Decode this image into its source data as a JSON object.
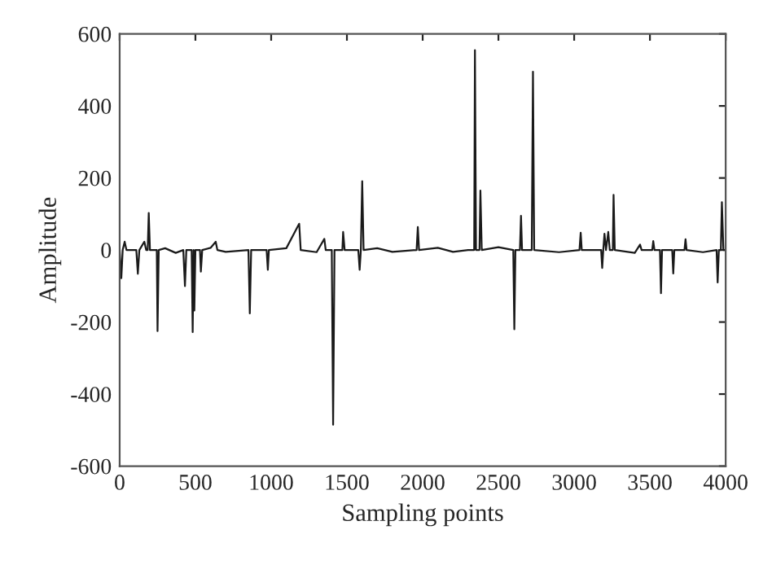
{
  "chart_data": {
    "type": "line",
    "xlabel": "Sampling points",
    "ylabel": "Amplitude",
    "xlim": [
      0,
      4000
    ],
    "xticks": [
      0,
      500,
      1000,
      1500,
      2000,
      2500,
      3000,
      3500,
      4000
    ],
    "ylim": [
      -600,
      600
    ],
    "yticks": [
      -600,
      -400,
      -200,
      0,
      200,
      400,
      600
    ],
    "grid": false,
    "marker": "none",
    "line_style": "solid",
    "series": [
      {
        "color": "#1a1a1a",
        "x": [
          0,
          11,
          20,
          33,
          45,
          110,
          120,
          130,
          163,
          175,
          185,
          192,
          200,
          245,
          250,
          258,
          300,
          370,
          420,
          431,
          440,
          475,
          482,
          488,
          493,
          500,
          530,
          536,
          545,
          600,
          634,
          645,
          700,
          850,
          859,
          868,
          970,
          978,
          985,
          1100,
          1185,
          1195,
          1300,
          1351,
          1360,
          1400,
          1409,
          1418,
          1470,
          1475,
          1485,
          1575,
          1584,
          1592,
          1601,
          1610,
          1700,
          1800,
          1960,
          1968,
          1976,
          2100,
          2200,
          2300,
          2340,
          2345,
          2352,
          2375,
          2381,
          2390,
          2500,
          2598,
          2605,
          2612,
          2642,
          2649,
          2656,
          2720,
          2728,
          2736,
          2900,
          3035,
          3043,
          3050,
          3178,
          3185,
          3192,
          3200,
          3210,
          3225,
          3235,
          3255,
          3260,
          3268,
          3400,
          3435,
          3445,
          3515,
          3522,
          3530,
          3566,
          3573,
          3580,
          3647,
          3654,
          3661,
          3728,
          3735,
          3742,
          3850,
          3940,
          3947,
          3955,
          3968,
          3975,
          3985,
          4000
        ],
        "values": [
          0,
          -78,
          0,
          23,
          0,
          0,
          -66,
          0,
          23,
          0,
          0,
          103,
          0,
          0,
          -225,
          0,
          5,
          -8,
          0,
          -100,
          0,
          0,
          -228,
          0,
          -168,
          0,
          0,
          -60,
          0,
          6,
          23,
          0,
          -5,
          0,
          -176,
          0,
          0,
          -55,
          0,
          5,
          73,
          0,
          -6,
          31,
          0,
          0,
          -485,
          0,
          0,
          50,
          0,
          0,
          -55,
          0,
          191,
          0,
          5,
          -5,
          0,
          64,
          0,
          6,
          -5,
          0,
          0,
          555,
          0,
          0,
          165,
          0,
          8,
          0,
          -220,
          0,
          0,
          95,
          0,
          0,
          495,
          0,
          -6,
          0,
          48,
          0,
          0,
          -50,
          0,
          45,
          0,
          50,
          0,
          0,
          153,
          0,
          -8,
          15,
          0,
          0,
          25,
          0,
          0,
          -120,
          0,
          0,
          -65,
          0,
          0,
          30,
          0,
          -6,
          0,
          -90,
          0,
          0,
          133,
          0,
          0
        ]
      }
    ]
  }
}
